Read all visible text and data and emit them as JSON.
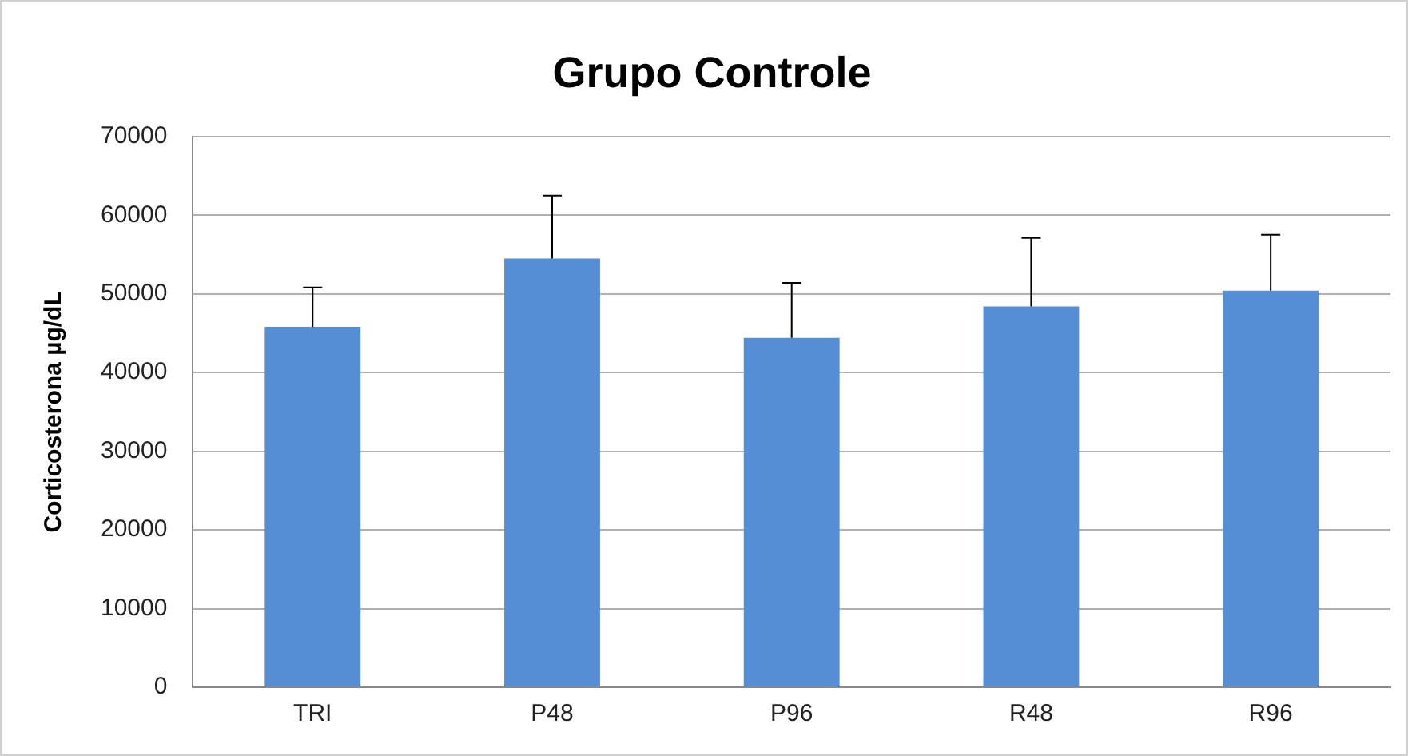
{
  "chart_data": {
    "type": "bar",
    "title": "Grupo Controle",
    "ylabel": "Corticosterona µg/dL",
    "categories": [
      "TRI",
      "P48",
      "P96",
      "R48",
      "R96"
    ],
    "values": [
      45800,
      54500,
      44400,
      48400,
      50400
    ],
    "errors": [
      [
        45800,
        50800
      ],
      [
        54500,
        62500
      ],
      [
        44400,
        51400
      ],
      [
        48400,
        57100
      ],
      [
        50400,
        57500
      ]
    ],
    "color": "#558ed5",
    "ylim": [
      0,
      70000
    ],
    "yticks": [
      0,
      10000,
      20000,
      30000,
      40000,
      50000,
      60000,
      70000
    ],
    "grid": "y",
    "legend": false
  }
}
